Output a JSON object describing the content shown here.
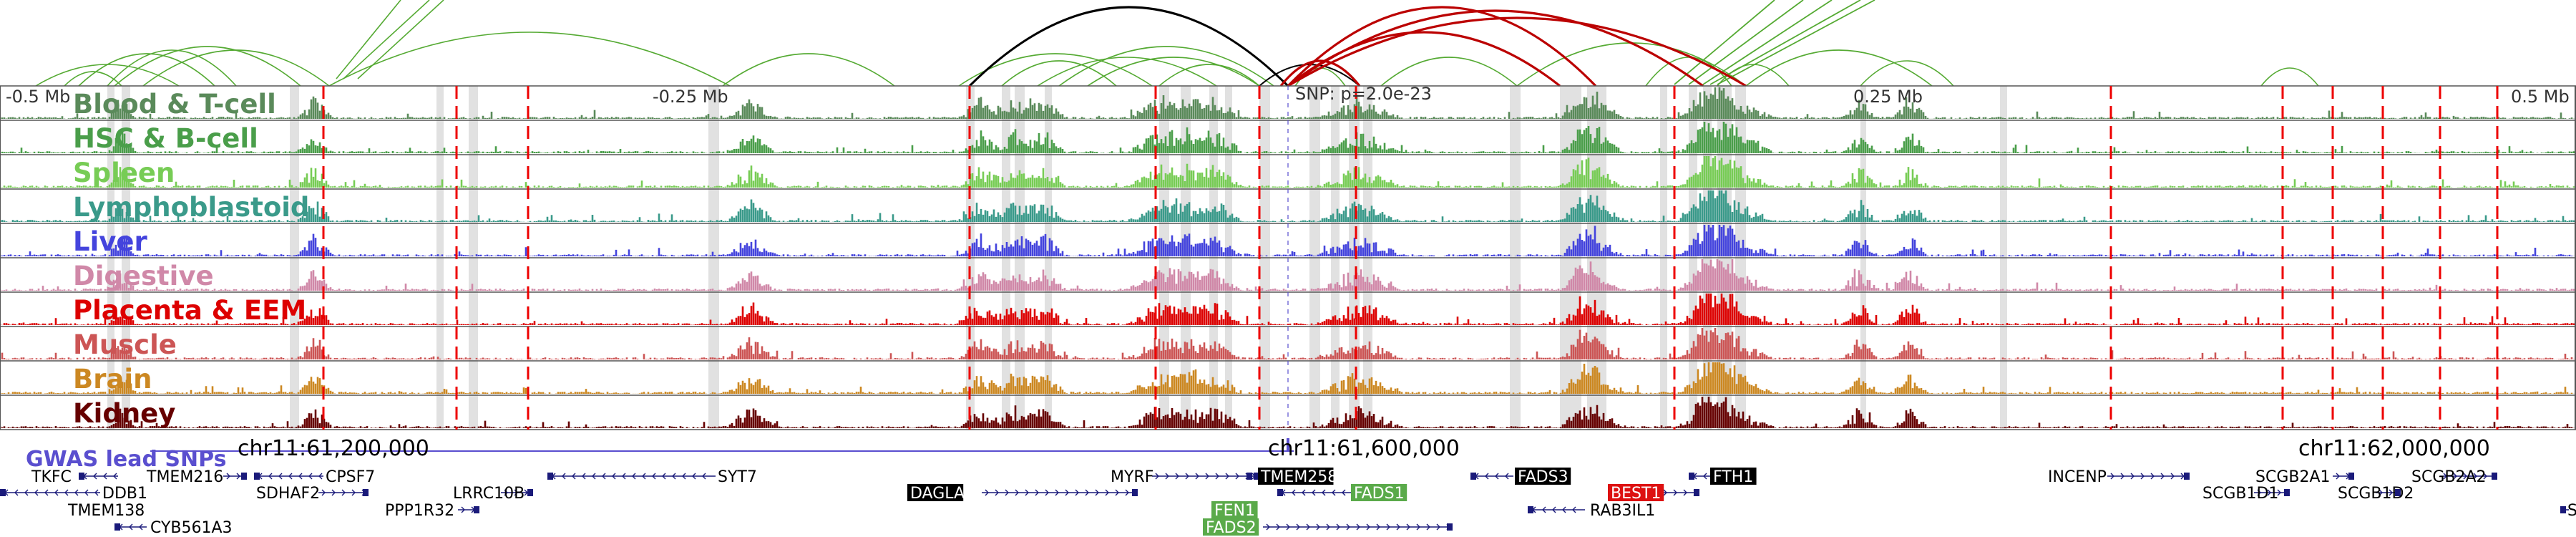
{
  "scale_labels": [
    {
      "text": "-0.5 Mb",
      "rel": 0.0
    },
    {
      "text": "-0.25 Mb",
      "rel": 0.25
    },
    {
      "text": "0.25 Mb",
      "rel": 0.75
    },
    {
      "text": "0.5 Mb",
      "rel": 1.0
    }
  ],
  "snp_label": "SNP: p=2.0e-23",
  "tracks": [
    {
      "name": "Blood & T-cell",
      "color": "#5a8a5a"
    },
    {
      "name": "HSC & B-cell",
      "color": "#4a9e4a"
    },
    {
      "name": "Spleen",
      "color": "#77cc55"
    },
    {
      "name": "Lymphoblastoid",
      "color": "#3a9a8a"
    },
    {
      "name": "Liver",
      "color": "#4444dd"
    },
    {
      "name": "Digestive",
      "color": "#d088a8"
    },
    {
      "name": "Placenta & EEM",
      "color": "#dd0000"
    },
    {
      "name": "Muscle",
      "color": "#cc5555"
    },
    {
      "name": "Brain",
      "color": "#cc8822"
    },
    {
      "name": "Kidney",
      "color": "#660000"
    }
  ],
  "gwas_label": "GWAS lead SNPs",
  "gwas_color": "#5a4fcf",
  "coords": [
    "chr11:61,200,000",
    "chr11:61,600,000",
    "chr11:62,000,000"
  ],
  "genes": [
    {
      "name": "TKFC",
      "style": "plain"
    },
    {
      "name": "TMEM216",
      "style": "plain"
    },
    {
      "name": "CPSF7",
      "style": "plain"
    },
    {
      "name": "SYT7",
      "style": "plain"
    },
    {
      "name": "MYRF",
      "style": "plain"
    },
    {
      "name": "TMEM258",
      "style": "black"
    },
    {
      "name": "FADS3",
      "style": "black"
    },
    {
      "name": "FTH1",
      "style": "black"
    },
    {
      "name": "INCENP",
      "style": "plain"
    },
    {
      "name": "SCGB2A1",
      "style": "plain"
    },
    {
      "name": "SCGB2A2",
      "style": "plain"
    },
    {
      "name": "DDB1",
      "style": "plain"
    },
    {
      "name": "SDHAF2",
      "style": "plain"
    },
    {
      "name": "LRRC10B",
      "style": "plain"
    },
    {
      "name": "DAGLA",
      "style": "black"
    },
    {
      "name": "FADS1",
      "style": "green"
    },
    {
      "name": "BEST1",
      "style": "red"
    },
    {
      "name": "SCGB1D1",
      "style": "plain"
    },
    {
      "name": "SCGB1D2",
      "style": "plain"
    },
    {
      "name": "TMEM138",
      "style": "plain"
    },
    {
      "name": "PPP1R32",
      "style": "plain"
    },
    {
      "name": "FEN1",
      "style": "green"
    },
    {
      "name": "RAB3IL1",
      "style": "plain"
    },
    {
      "name": "CYB561A3",
      "style": "plain"
    },
    {
      "name": "FADS2",
      "style": "green"
    },
    {
      "name": "S",
      "style": "plain"
    }
  ],
  "colors": {
    "loop_green": "#55aa33",
    "loop_black": "#000000",
    "loop_red": "#bb0000",
    "highlight": "#dcdcdc",
    "dash_red": "#ee0000",
    "gene_blue": "#1a1a7a",
    "badge_black": "#000000",
    "badge_green": "#5aaa4a",
    "badge_red": "#dd1111"
  }
}
